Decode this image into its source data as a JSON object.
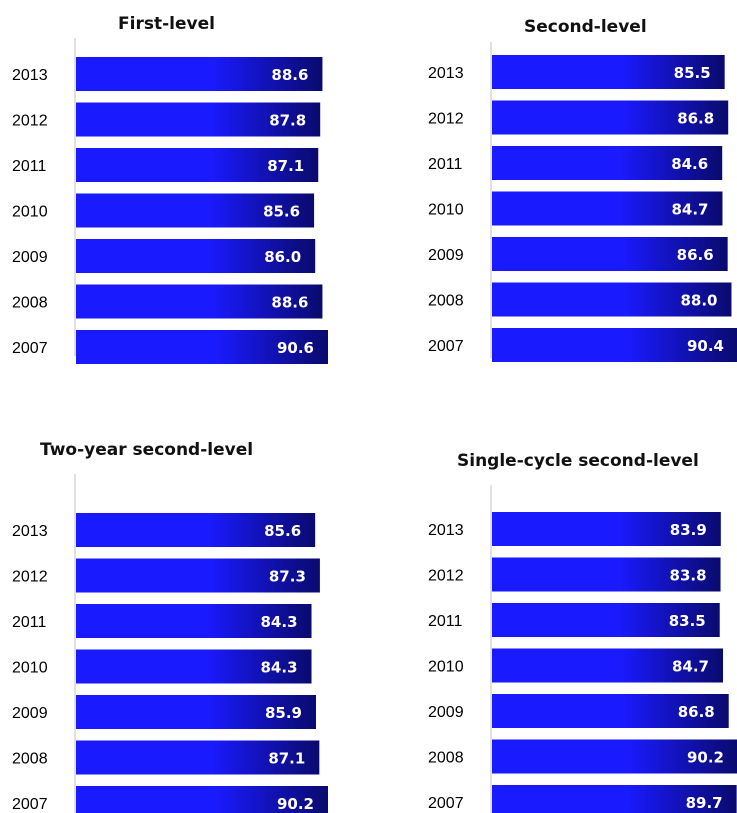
{
  "colors": {
    "bar_start": "#1a1aff",
    "bar_end": "#0a0a6e",
    "axis": "#cccccc",
    "label": "#ffffff"
  },
  "chart_data": [
    {
      "type": "bar",
      "orientation": "horizontal",
      "title": "First-level",
      "categories": [
        "2013",
        "2012",
        "2011",
        "2010",
        "2009",
        "2008",
        "2007"
      ],
      "values": [
        88.6,
        87.8,
        87.1,
        85.6,
        86.0,
        88.6,
        90.6
      ],
      "xlabel": "",
      "ylabel": "",
      "grid": false,
      "legend": "none"
    },
    {
      "type": "bar",
      "orientation": "horizontal",
      "title": "Second-level",
      "categories": [
        "2013",
        "2012",
        "2011",
        "2010",
        "2009",
        "2008",
        "2007"
      ],
      "values": [
        85.5,
        86.8,
        84.6,
        84.7,
        86.6,
        88.0,
        90.4
      ],
      "xlabel": "",
      "ylabel": "",
      "grid": false,
      "legend": "none"
    },
    {
      "type": "bar",
      "orientation": "horizontal",
      "title": "Two-year second-level",
      "categories": [
        "2013",
        "2012",
        "2011",
        "2010",
        "2009",
        "2008",
        "2007"
      ],
      "values": [
        85.6,
        87.3,
        84.3,
        84.3,
        85.9,
        87.1,
        90.2
      ],
      "xlabel": "",
      "ylabel": "",
      "grid": false,
      "legend": "none"
    },
    {
      "type": "bar",
      "orientation": "horizontal",
      "title": "Single-cycle second-level",
      "categories": [
        "2013",
        "2012",
        "2011",
        "2010",
        "2009",
        "2008",
        "2007"
      ],
      "values": [
        83.9,
        83.8,
        83.5,
        84.7,
        86.8,
        90.2,
        89.7
      ],
      "xlabel": "",
      "ylabel": "",
      "grid": false,
      "legend": "none"
    }
  ]
}
